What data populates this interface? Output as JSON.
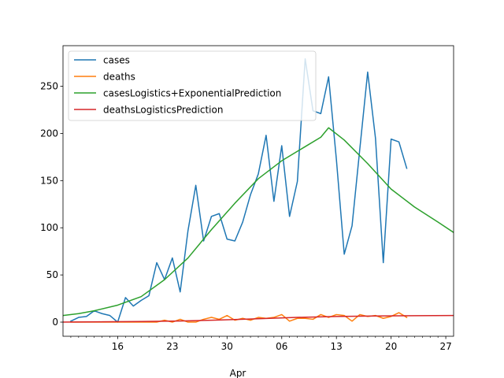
{
  "chart_data": {
    "type": "line",
    "xlabel": "Apr",
    "ylabel": "",
    "ylim": [
      -15,
      293
    ],
    "x_range": [
      "2020-03-09",
      "2020-04-28"
    ],
    "y_ticks": [
      0,
      50,
      100,
      150,
      200,
      250
    ],
    "x_major_ticks": [
      {
        "date": "2020-03-16",
        "label": "16"
      },
      {
        "date": "2020-03-23",
        "label": "23"
      },
      {
        "date": "2020-03-30",
        "label": "30"
      },
      {
        "date": "2020-04-06",
        "label": "06"
      },
      {
        "date": "2020-04-13",
        "label": "13"
      },
      {
        "date": "2020-04-20",
        "label": "20"
      },
      {
        "date": "2020-04-27",
        "label": "27"
      }
    ],
    "grid": false,
    "legend_position": "top-left",
    "series": [
      {
        "name": "cases",
        "color": "#1f77b4",
        "points": [
          [
            "2020-03-10",
            1
          ],
          [
            "2020-03-11",
            5
          ],
          [
            "2020-03-12",
            6
          ],
          [
            "2020-03-13",
            12
          ],
          [
            "2020-03-14",
            9
          ],
          [
            "2020-03-15",
            7
          ],
          [
            "2020-03-16",
            0
          ],
          [
            "2020-03-17",
            26
          ],
          [
            "2020-03-18",
            17
          ],
          [
            "2020-03-19",
            23
          ],
          [
            "2020-03-20",
            28
          ],
          [
            "2020-03-21",
            63
          ],
          [
            "2020-03-22",
            45
          ],
          [
            "2020-03-23",
            68
          ],
          [
            "2020-03-24",
            32
          ],
          [
            "2020-03-25",
            97
          ],
          [
            "2020-03-26",
            145
          ],
          [
            "2020-03-27",
            86
          ],
          [
            "2020-03-28",
            112
          ],
          [
            "2020-03-29",
            115
          ],
          [
            "2020-03-30",
            88
          ],
          [
            "2020-03-31",
            86
          ],
          [
            "2020-04-01",
            106
          ],
          [
            "2020-04-02",
            135
          ],
          [
            "2020-04-03",
            157
          ],
          [
            "2020-04-04",
            198
          ],
          [
            "2020-04-05",
            128
          ],
          [
            "2020-04-06",
            187
          ],
          [
            "2020-04-07",
            112
          ],
          [
            "2020-04-08",
            149
          ],
          [
            "2020-04-09",
            279
          ],
          [
            "2020-04-10",
            224
          ],
          [
            "2020-04-11",
            221
          ],
          [
            "2020-04-12",
            260
          ],
          [
            "2020-04-13",
            172
          ],
          [
            "2020-04-14",
            72
          ],
          [
            "2020-04-15",
            102
          ],
          [
            "2020-04-16",
            184
          ],
          [
            "2020-04-17",
            265
          ],
          [
            "2020-04-18",
            195
          ],
          [
            "2020-04-19",
            63
          ],
          [
            "2020-04-20",
            194
          ],
          [
            "2020-04-21",
            191
          ],
          [
            "2020-04-22",
            163
          ]
        ]
      },
      {
        "name": "deaths",
        "color": "#ff7f0e",
        "points": [
          [
            "2020-03-10",
            0
          ],
          [
            "2020-03-11",
            0
          ],
          [
            "2020-03-12",
            0
          ],
          [
            "2020-03-13",
            0
          ],
          [
            "2020-03-14",
            0
          ],
          [
            "2020-03-15",
            0
          ],
          [
            "2020-03-16",
            0
          ],
          [
            "2020-03-17",
            0
          ],
          [
            "2020-03-18",
            0
          ],
          [
            "2020-03-19",
            0
          ],
          [
            "2020-03-20",
            0
          ],
          [
            "2020-03-21",
            0
          ],
          [
            "2020-03-22",
            2
          ],
          [
            "2020-03-23",
            0
          ],
          [
            "2020-03-24",
            3
          ],
          [
            "2020-03-25",
            0
          ],
          [
            "2020-03-26",
            0
          ],
          [
            "2020-03-27",
            3
          ],
          [
            "2020-03-28",
            5
          ],
          [
            "2020-03-29",
            3
          ],
          [
            "2020-03-30",
            7
          ],
          [
            "2020-03-31",
            2
          ],
          [
            "2020-04-01",
            4
          ],
          [
            "2020-04-02",
            2
          ],
          [
            "2020-04-03",
            5
          ],
          [
            "2020-04-04",
            4
          ],
          [
            "2020-04-05",
            5
          ],
          [
            "2020-04-06",
            8
          ],
          [
            "2020-04-07",
            1
          ],
          [
            "2020-04-08",
            4
          ],
          [
            "2020-04-09",
            4
          ],
          [
            "2020-04-10",
            3
          ],
          [
            "2020-04-11",
            8
          ],
          [
            "2020-04-12",
            5
          ],
          [
            "2020-04-13",
            8
          ],
          [
            "2020-04-14",
            7
          ],
          [
            "2020-04-15",
            1
          ],
          [
            "2020-04-16",
            8
          ],
          [
            "2020-04-17",
            6
          ],
          [
            "2020-04-18",
            7
          ],
          [
            "2020-04-19",
            4
          ],
          [
            "2020-04-20",
            6
          ],
          [
            "2020-04-21",
            10
          ],
          [
            "2020-04-22",
            5
          ]
        ]
      },
      {
        "name": "casesLogistics+ExponentialPrediction",
        "color": "#2ca02c",
        "points": [
          [
            "2020-03-09",
            7
          ],
          [
            "2020-03-11",
            9
          ],
          [
            "2020-03-13",
            12
          ],
          [
            "2020-03-16",
            18
          ],
          [
            "2020-03-19",
            27
          ],
          [
            "2020-03-22",
            45
          ],
          [
            "2020-03-25",
            68
          ],
          [
            "2020-03-28",
            98
          ],
          [
            "2020-03-31",
            126
          ],
          [
            "2020-04-03",
            152
          ],
          [
            "2020-04-06",
            171
          ],
          [
            "2020-04-09",
            186
          ],
          [
            "2020-04-11",
            196
          ],
          [
            "2020-04-12",
            206
          ],
          [
            "2020-04-14",
            193
          ],
          [
            "2020-04-17",
            168
          ],
          [
            "2020-04-20",
            141
          ],
          [
            "2020-04-23",
            122
          ],
          [
            "2020-04-26",
            106
          ],
          [
            "2020-04-28",
            95
          ]
        ]
      },
      {
        "name": "deathsLogisticsPrediction",
        "color": "#d62728",
        "points": [
          [
            "2020-03-09",
            0
          ],
          [
            "2020-03-14",
            0.3
          ],
          [
            "2020-03-19",
            0.6
          ],
          [
            "2020-03-24",
            1.2
          ],
          [
            "2020-03-29",
            2.2
          ],
          [
            "2020-04-03",
            3.6
          ],
          [
            "2020-04-08",
            5
          ],
          [
            "2020-04-13",
            6
          ],
          [
            "2020-04-18",
            6.5
          ],
          [
            "2020-04-23",
            6.8
          ],
          [
            "2020-04-28",
            7
          ]
        ]
      }
    ]
  }
}
